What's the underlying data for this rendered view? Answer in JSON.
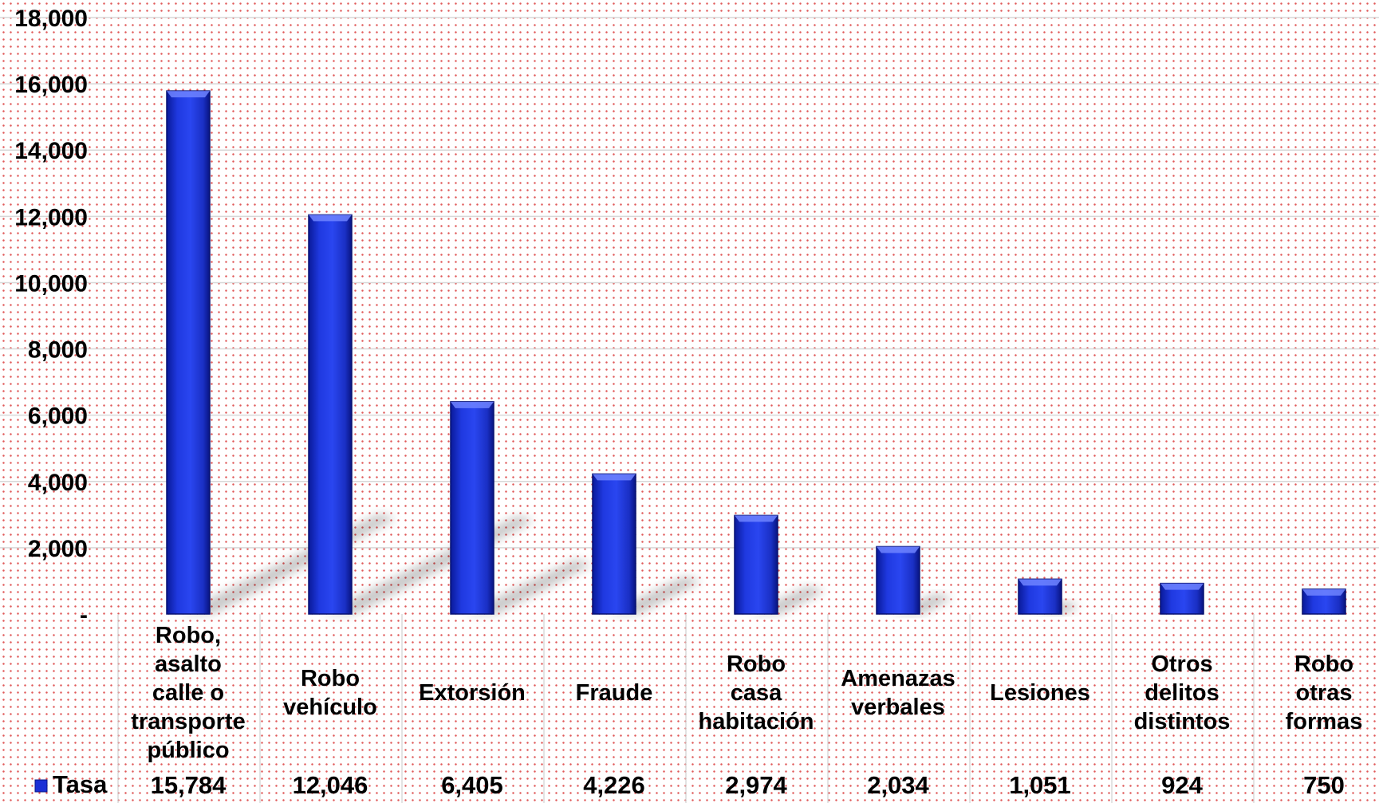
{
  "chart_data": {
    "type": "bar",
    "title": "",
    "xlabel": "",
    "ylabel": "",
    "ylim": [
      0,
      18000
    ],
    "y_ticks": [
      {
        "value": 0,
        "label": "-"
      },
      {
        "value": 2000,
        "label": "2,000"
      },
      {
        "value": 4000,
        "label": "4,000"
      },
      {
        "value": 6000,
        "label": "6,000"
      },
      {
        "value": 8000,
        "label": "8,000"
      },
      {
        "value": 10000,
        "label": "10,000"
      },
      {
        "value": 12000,
        "label": "12,000"
      },
      {
        "value": 14000,
        "label": "14,000"
      },
      {
        "value": 16000,
        "label": "16,000"
      },
      {
        "value": 18000,
        "label": "18,000"
      }
    ],
    "categories": [
      "Robo, asalto calle o transporte público",
      "Robo vehículo",
      "Extorsión",
      "Fraude",
      "Robo casa habitación",
      "Amenazas verbales",
      "Lesiones",
      "Otros delitos distintos",
      "Robo otras formas"
    ],
    "category_lines": [
      [
        "Robo,",
        "asalto",
        "calle o",
        "transporte",
        "público"
      ],
      [
        "Robo",
        "vehículo"
      ],
      [
        "Extorsión"
      ],
      [
        "Fraude"
      ],
      [
        "Robo",
        "casa",
        "habitación"
      ],
      [
        "Amenazas",
        "verbales"
      ],
      [
        "Lesiones"
      ],
      [
        "Otros",
        "delitos",
        "distintos"
      ],
      [
        "Robo",
        "otras",
        "formas"
      ]
    ],
    "series": [
      {
        "name": "Tasa",
        "values": [
          15784,
          12046,
          6405,
          4226,
          2974,
          2034,
          1051,
          924,
          750
        ],
        "value_labels": [
          "15,784",
          "12,046",
          "6,405",
          "4,226",
          "2,974",
          "2,034",
          "1,051",
          "924",
          "750"
        ],
        "color": "#1a2fd6"
      }
    ],
    "grid": true,
    "legend": "data-table-left",
    "data_table": true
  }
}
